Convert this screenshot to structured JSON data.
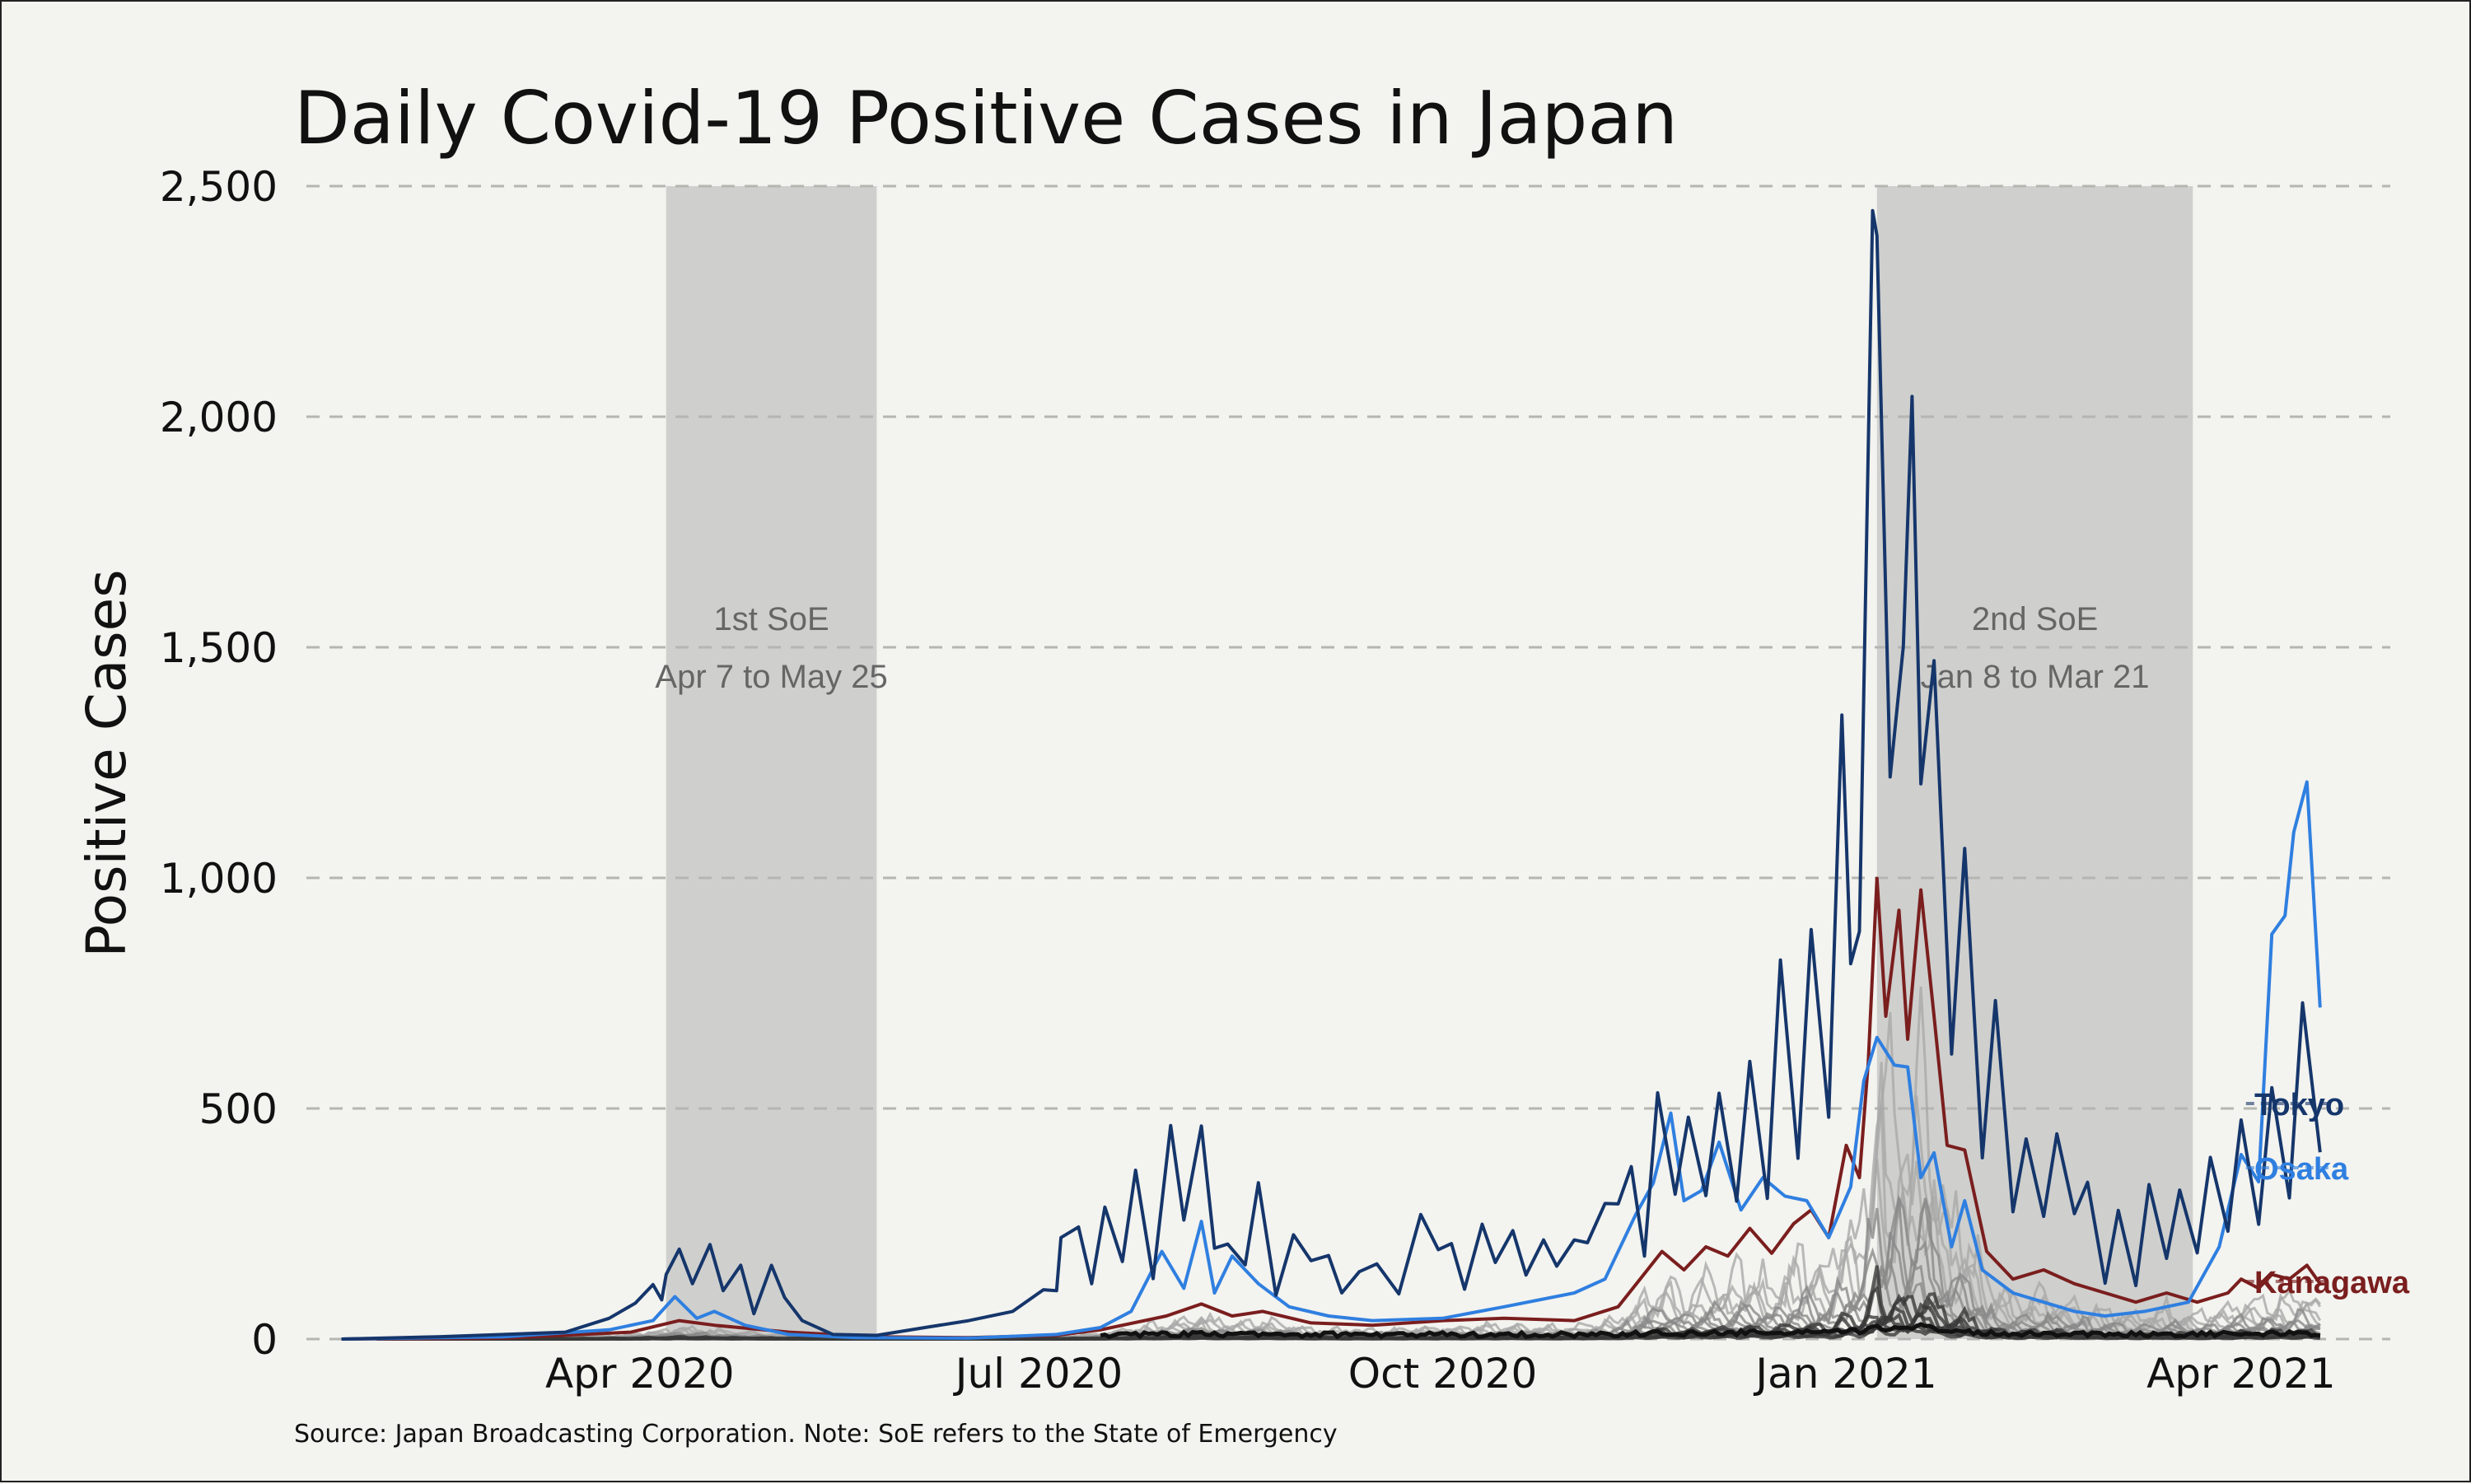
{
  "chart_data": {
    "type": "line",
    "title": "Daily Covid-19 Positive Cases in Japan",
    "ylabel": "Positive Cases",
    "xlabel": "",
    "source_note": "Source: Japan Broadcasting Corporation. Note: SoE refers to the State of Emergency",
    "ylim": [
      0,
      2500
    ],
    "yticks": [
      0,
      500,
      1000,
      1500,
      2000,
      2500
    ],
    "ytick_labels": [
      "0",
      "500",
      "1,000",
      "1,500",
      "2,000",
      "2,500"
    ],
    "xlim": [
      "2020-01-16",
      "2021-05-05"
    ],
    "xticks": [
      "2020-04-01",
      "2020-07-01",
      "2020-10-01",
      "2021-01-01",
      "2021-04-01"
    ],
    "xtick_labels": [
      "Apr 2020",
      "Jul 2020",
      "Oct 2020",
      "Jan 2021",
      "Apr 2021"
    ],
    "grid": "horizontal dashed",
    "shaded_periods": [
      {
        "start": "2020-04-07",
        "end": "2020-05-25",
        "line1": "1st SoE",
        "line2": "Apr 7 to May 25"
      },
      {
        "start": "2021-01-08",
        "end": "2021-03-21",
        "line1": "2nd SoE",
        "line2": "Jan 8 to Mar 21"
      }
    ],
    "series": [
      {
        "name": "Tokyo",
        "color": "#15366b",
        "points": [
          [
            "2020-01-24",
            0
          ],
          [
            "2020-02-15",
            5
          ],
          [
            "2020-03-01",
            10
          ],
          [
            "2020-03-15",
            15
          ],
          [
            "2020-03-25",
            45
          ],
          [
            "2020-03-31",
            78
          ],
          [
            "2020-04-04",
            118
          ],
          [
            "2020-04-06",
            85
          ],
          [
            "2020-04-07",
            140
          ],
          [
            "2020-04-10",
            195
          ],
          [
            "2020-04-13",
            120
          ],
          [
            "2020-04-17",
            205
          ],
          [
            "2020-04-20",
            105
          ],
          [
            "2020-04-24",
            160
          ],
          [
            "2020-04-27",
            55
          ],
          [
            "2020-05-01",
            160
          ],
          [
            "2020-05-04",
            90
          ],
          [
            "2020-05-08",
            40
          ],
          [
            "2020-05-15",
            10
          ],
          [
            "2020-05-25",
            8
          ],
          [
            "2020-06-05",
            25
          ],
          [
            "2020-06-15",
            40
          ],
          [
            "2020-06-25",
            60
          ],
          [
            "2020-07-02",
            107
          ],
          [
            "2020-07-05",
            105
          ],
          [
            "2020-07-06",
            220
          ],
          [
            "2020-07-10",
            243
          ],
          [
            "2020-07-13",
            120
          ],
          [
            "2020-07-16",
            286
          ],
          [
            "2020-07-20",
            168
          ],
          [
            "2020-07-23",
            366
          ],
          [
            "2020-07-27",
            131
          ],
          [
            "2020-07-31",
            463
          ],
          [
            "2020-08-03",
            258
          ],
          [
            "2020-08-07",
            462
          ],
          [
            "2020-08-10",
            197
          ],
          [
            "2020-08-13",
            206
          ],
          [
            "2020-08-17",
            161
          ],
          [
            "2020-08-20",
            339
          ],
          [
            "2020-08-24",
            95
          ],
          [
            "2020-08-28",
            226
          ],
          [
            "2020-09-01",
            170
          ],
          [
            "2020-09-05",
            181
          ],
          [
            "2020-09-08",
            100
          ],
          [
            "2020-09-12",
            146
          ],
          [
            "2020-09-16",
            163
          ],
          [
            "2020-09-21",
            98
          ],
          [
            "2020-09-26",
            270
          ],
          [
            "2020-09-30",
            194
          ],
          [
            "2020-10-03",
            207
          ],
          [
            "2020-10-06",
            108
          ],
          [
            "2020-10-10",
            249
          ],
          [
            "2020-10-13",
            166
          ],
          [
            "2020-10-17",
            235
          ],
          [
            "2020-10-20",
            139
          ],
          [
            "2020-10-24",
            215
          ],
          [
            "2020-10-27",
            158
          ],
          [
            "2020-10-31",
            215
          ],
          [
            "2020-11-03",
            209
          ],
          [
            "2020-11-07",
            294
          ],
          [
            "2020-11-10",
            293
          ],
          [
            "2020-11-13",
            374
          ],
          [
            "2020-11-16",
            180
          ],
          [
            "2020-11-19",
            534
          ],
          [
            "2020-11-23",
            314
          ],
          [
            "2020-11-26",
            481
          ],
          [
            "2020-11-30",
            311
          ],
          [
            "2020-12-03",
            533
          ],
          [
            "2020-12-07",
            299
          ],
          [
            "2020-12-10",
            602
          ],
          [
            "2020-12-14",
            305
          ],
          [
            "2020-12-17",
            822
          ],
          [
            "2020-12-21",
            392
          ],
          [
            "2020-12-24",
            888
          ],
          [
            "2020-12-28",
            481
          ],
          [
            "2020-12-31",
            1353
          ],
          [
            "2021-01-02",
            814
          ],
          [
            "2021-01-04",
            884
          ],
          [
            "2021-01-07",
            2447
          ],
          [
            "2021-01-08",
            2392
          ],
          [
            "2021-01-11",
            1219
          ],
          [
            "2021-01-14",
            1502
          ],
          [
            "2021-01-16",
            2044
          ],
          [
            "2021-01-18",
            1204
          ],
          [
            "2021-01-21",
            1471
          ],
          [
            "2021-01-25",
            618
          ],
          [
            "2021-01-28",
            1064
          ],
          [
            "2021-02-01",
            393
          ],
          [
            "2021-02-04",
            734
          ],
          [
            "2021-02-08",
            276
          ],
          [
            "2021-02-11",
            434
          ],
          [
            "2021-02-15",
            266
          ],
          [
            "2021-02-18",
            445
          ],
          [
            "2021-02-22",
            272
          ],
          [
            "2021-02-25",
            340
          ],
          [
            "2021-03-01",
            121
          ],
          [
            "2021-03-04",
            279
          ],
          [
            "2021-03-08",
            116
          ],
          [
            "2021-03-11",
            335
          ],
          [
            "2021-03-15",
            175
          ],
          [
            "2021-03-18",
            323
          ],
          [
            "2021-03-22",
            187
          ],
          [
            "2021-03-25",
            394
          ],
          [
            "2021-03-29",
            234
          ],
          [
            "2021-04-01",
            475
          ],
          [
            "2021-04-05",
            249
          ],
          [
            "2021-04-08",
            545
          ],
          [
            "2021-04-12",
            306
          ],
          [
            "2021-04-15",
            729
          ],
          [
            "2021-04-19",
            405
          ]
        ]
      },
      {
        "name": "Osaka",
        "color": "#2f7fe0",
        "points": [
          [
            "2020-01-24",
            0
          ],
          [
            "2020-03-01",
            5
          ],
          [
            "2020-03-25",
            20
          ],
          [
            "2020-04-04",
            40
          ],
          [
            "2020-04-09",
            92
          ],
          [
            "2020-04-14",
            45
          ],
          [
            "2020-04-18",
            60
          ],
          [
            "2020-04-25",
            30
          ],
          [
            "2020-05-05",
            10
          ],
          [
            "2020-05-20",
            3
          ],
          [
            "2020-06-15",
            2
          ],
          [
            "2020-07-05",
            10
          ],
          [
            "2020-07-15",
            25
          ],
          [
            "2020-07-22",
            60
          ],
          [
            "2020-07-29",
            190
          ],
          [
            "2020-08-03",
            110
          ],
          [
            "2020-08-07",
            255
          ],
          [
            "2020-08-10",
            100
          ],
          [
            "2020-08-14",
            180
          ],
          [
            "2020-08-20",
            120
          ],
          [
            "2020-08-27",
            70
          ],
          [
            "2020-09-05",
            50
          ],
          [
            "2020-09-15",
            40
          ],
          [
            "2020-10-01",
            45
          ],
          [
            "2020-10-15",
            70
          ],
          [
            "2020-10-31",
            100
          ],
          [
            "2020-11-07",
            130
          ],
          [
            "2020-11-14",
            270
          ],
          [
            "2020-11-18",
            338
          ],
          [
            "2020-11-22",
            490
          ],
          [
            "2020-11-25",
            300
          ],
          [
            "2020-11-29",
            322
          ],
          [
            "2020-12-03",
            427
          ],
          [
            "2020-12-08",
            280
          ],
          [
            "2020-12-13",
            350
          ],
          [
            "2020-12-18",
            310
          ],
          [
            "2020-12-23",
            300
          ],
          [
            "2020-12-28",
            220
          ],
          [
            "2021-01-02",
            330
          ],
          [
            "2021-01-05",
            560
          ],
          [
            "2021-01-08",
            654
          ],
          [
            "2021-01-12",
            594
          ],
          [
            "2021-01-15",
            590
          ],
          [
            "2021-01-18",
            350
          ],
          [
            "2021-01-21",
            404
          ],
          [
            "2021-01-25",
            200
          ],
          [
            "2021-01-28",
            300
          ],
          [
            "2021-02-01",
            150
          ],
          [
            "2021-02-08",
            100
          ],
          [
            "2021-02-15",
            80
          ],
          [
            "2021-02-22",
            60
          ],
          [
            "2021-03-01",
            50
          ],
          [
            "2021-03-10",
            60
          ],
          [
            "2021-03-20",
            80
          ],
          [
            "2021-03-27",
            200
          ],
          [
            "2021-04-01",
            400
          ],
          [
            "2021-04-05",
            341
          ],
          [
            "2021-04-08",
            878
          ],
          [
            "2021-04-11",
            918
          ],
          [
            "2021-04-13",
            1099
          ],
          [
            "2021-04-16",
            1208
          ],
          [
            "2021-04-19",
            719
          ]
        ]
      },
      {
        "name": "Kanagawa",
        "color": "#7a1e1e",
        "points": [
          [
            "2020-01-24",
            0
          ],
          [
            "2020-03-01",
            2
          ],
          [
            "2020-03-30",
            15
          ],
          [
            "2020-04-10",
            40
          ],
          [
            "2020-04-18",
            30
          ],
          [
            "2020-05-05",
            15
          ],
          [
            "2020-05-25",
            5
          ],
          [
            "2020-06-15",
            3
          ],
          [
            "2020-07-05",
            8
          ],
          [
            "2020-07-15",
            20
          ],
          [
            "2020-07-30",
            50
          ],
          [
            "2020-08-07",
            76
          ],
          [
            "2020-08-14",
            50
          ],
          [
            "2020-08-21",
            60
          ],
          [
            "2020-09-01",
            35
          ],
          [
            "2020-09-15",
            30
          ],
          [
            "2020-10-01",
            40
          ],
          [
            "2020-10-15",
            45
          ],
          [
            "2020-10-31",
            40
          ],
          [
            "2020-11-10",
            70
          ],
          [
            "2020-11-15",
            130
          ],
          [
            "2020-11-20",
            190
          ],
          [
            "2020-11-25",
            150
          ],
          [
            "2020-11-30",
            200
          ],
          [
            "2020-12-05",
            180
          ],
          [
            "2020-12-10",
            240
          ],
          [
            "2020-12-15",
            186
          ],
          [
            "2020-12-20",
            250
          ],
          [
            "2020-12-24",
            280
          ],
          [
            "2020-12-28",
            220
          ],
          [
            "2021-01-01",
            420
          ],
          [
            "2021-01-04",
            350
          ],
          [
            "2021-01-06",
            600
          ],
          [
            "2021-01-08",
            999
          ],
          [
            "2021-01-10",
            700
          ],
          [
            "2021-01-13",
            930
          ],
          [
            "2021-01-15",
            650
          ],
          [
            "2021-01-18",
            974
          ],
          [
            "2021-01-21",
            700
          ],
          [
            "2021-01-24",
            420
          ],
          [
            "2021-01-28",
            410
          ],
          [
            "2021-02-02",
            190
          ],
          [
            "2021-02-08",
            130
          ],
          [
            "2021-02-15",
            150
          ],
          [
            "2021-02-22",
            120
          ],
          [
            "2021-03-01",
            100
          ],
          [
            "2021-03-08",
            80
          ],
          [
            "2021-03-15",
            100
          ],
          [
            "2021-03-22",
            80
          ],
          [
            "2021-03-29",
            100
          ],
          [
            "2021-04-01",
            130
          ],
          [
            "2021-04-05",
            110
          ],
          [
            "2021-04-08",
            140
          ],
          [
            "2021-04-12",
            130
          ],
          [
            "2021-04-16",
            160
          ],
          [
            "2021-04-19",
            120
          ]
        ]
      }
    ]
  }
}
